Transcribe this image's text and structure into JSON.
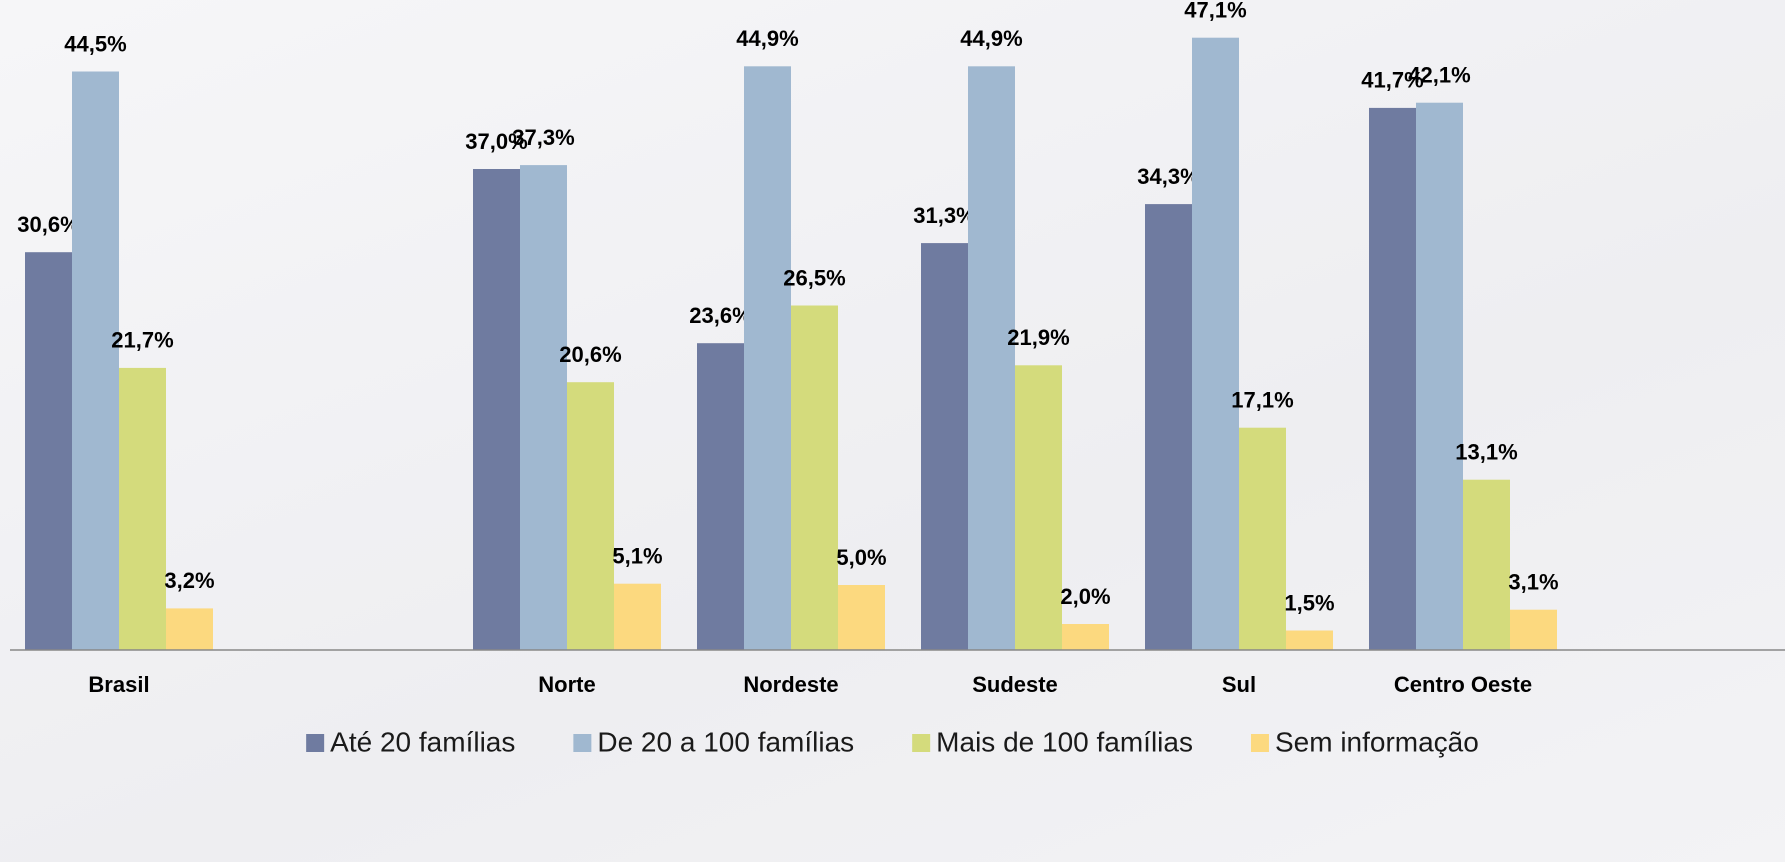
{
  "chart_data": {
    "type": "bar",
    "categories": [
      "Brasil",
      null,
      "Norte",
      "Nordeste",
      "Sudeste",
      "Sul",
      "Centro Oeste"
    ],
    "series": [
      {
        "name": "Até 20 famílias",
        "color": "#6f7ba0",
        "values": [
          30.6,
          null,
          37.0,
          23.6,
          31.3,
          34.3,
          41.7
        ],
        "value_labels": [
          "30,6%",
          null,
          "37,0%",
          "23,6%",
          "31,3%",
          "34,3%",
          "41,7%"
        ]
      },
      {
        "name": "De 20 a 100 famílias",
        "color": "#a0b8d0",
        "values": [
          44.5,
          null,
          37.3,
          44.9,
          44.9,
          47.1,
          42.1
        ],
        "value_labels": [
          "44,5%",
          null,
          "37,3%",
          "44,9%",
          "44,9%",
          "47,1%",
          "42,1%"
        ]
      },
      {
        "name": "Mais de 100 famílias",
        "color": "#d4db7c",
        "values": [
          21.7,
          null,
          20.6,
          26.5,
          21.9,
          17.1,
          13.1
        ],
        "value_labels": [
          "21,7%",
          null,
          "20,6%",
          "26,5%",
          "21,9%",
          "17,1%",
          "13,1%"
        ]
      },
      {
        "name": "Sem informação",
        "color": "#fcd97f",
        "values": [
          3.2,
          null,
          5.1,
          5.0,
          2.0,
          1.5,
          3.1
        ],
        "value_labels": [
          "3,2%",
          null,
          "5,1%",
          "5,0%",
          "2,0%",
          "1,5%",
          "3,1%"
        ]
      }
    ],
    "ylim": [
      0,
      50
    ],
    "legend": "bottom"
  }
}
